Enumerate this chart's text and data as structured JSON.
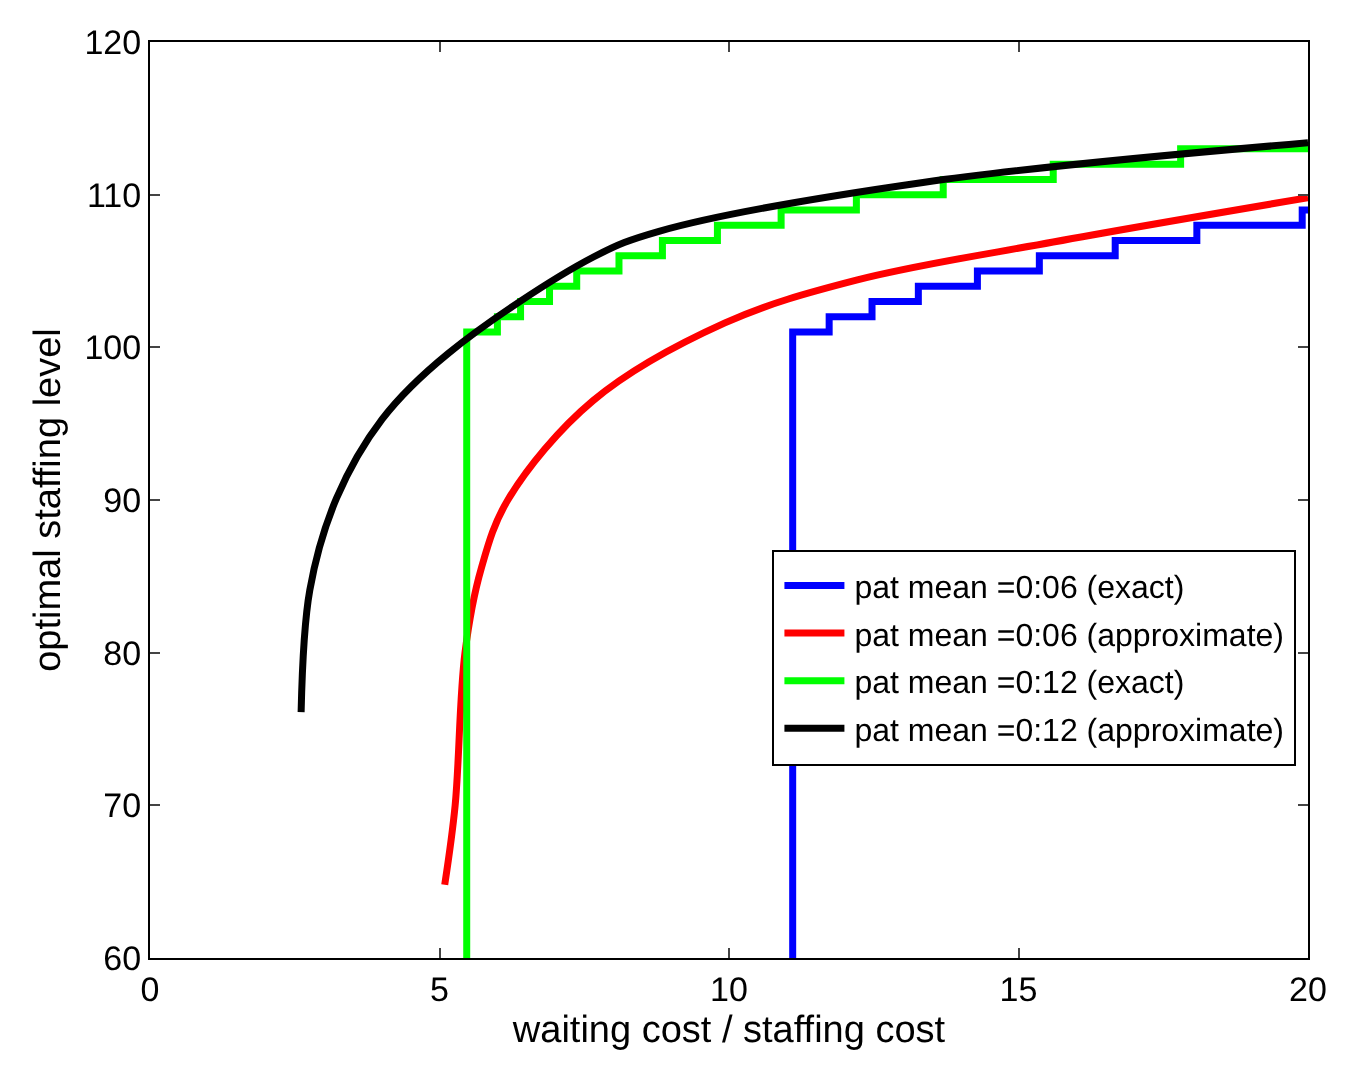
{
  "chart_data": {
    "type": "line",
    "xlabel": "waiting cost / staffing cost",
    "ylabel": "optimal staffing level",
    "xlim": [
      0,
      20
    ],
    "xticks": [
      0,
      5,
      10,
      15,
      20
    ],
    "ylim": [
      60,
      120
    ],
    "yticks": [
      60,
      70,
      80,
      90,
      100,
      110,
      120
    ],
    "legend": "right",
    "line_style": "solid",
    "marker": "none",
    "series": [
      {
        "name": "pat mean =0:06 (exact)",
        "color": "#0000ff",
        "type": "step",
        "x": [
          11.1,
          11.1,
          11.73,
          12.47,
          13.27,
          14.29,
          15.36,
          16.67,
          18.08,
          19.9,
          20
        ],
        "values": [
          60,
          101,
          102,
          103,
          104,
          105,
          106,
          107,
          108,
          109,
          109
        ]
      },
      {
        "name": "pat mean =0:06 (approximate)",
        "color": "#ff0000",
        "x": [
          5.09,
          5.27,
          5.44,
          5.72,
          6.18,
          7.65,
          9.93,
          12.2,
          15.6,
          20
        ],
        "values": [
          64.8,
          70,
          80,
          85.5,
          90,
          96.5,
          101.6,
          104.4,
          106.9,
          109.8
        ]
      },
      {
        "name": "pat mean =0:12 (exact)",
        "color": "#00ff00",
        "type": "step",
        "x": [
          5.47,
          5.47,
          6.0,
          6.4,
          6.9,
          7.37,
          8.1,
          8.85,
          9.8,
          10.9,
          12.2,
          13.7,
          15.6,
          17.8,
          20
        ],
        "values": [
          60,
          101,
          102,
          103,
          104,
          105,
          106,
          107,
          108,
          109,
          110,
          111,
          112,
          113,
          113
        ]
      },
      {
        "name": "pat mean =0:12 (approximate)",
        "color": "#000000",
        "x": [
          2.61,
          2.76,
          3.22,
          4.01,
          5.15,
          7.65,
          8.79,
          13.35,
          20
        ],
        "values": [
          76.1,
          84.1,
          90.1,
          95.3,
          99.6,
          105.9,
          107.6,
          110.8,
          113.4
        ]
      }
    ]
  }
}
